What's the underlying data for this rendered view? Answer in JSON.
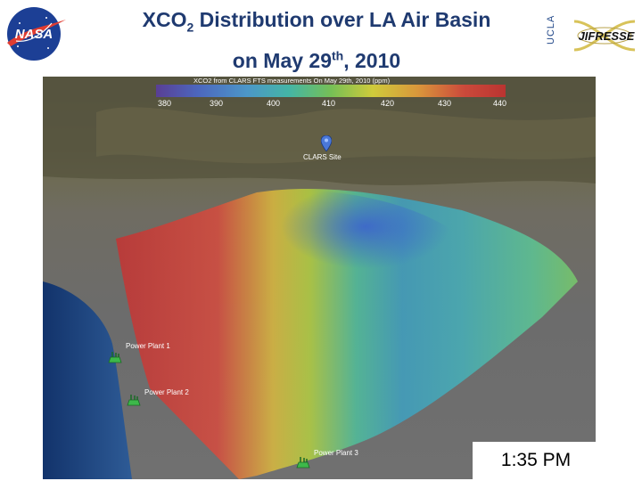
{
  "header": {
    "title_line1_part1": "XCO",
    "title_line1_sub": "2",
    "title_line1_part2": " Distribution over LA Air Basin",
    "title_line2_part1": "on May 29",
    "title_line2_sup": "th",
    "title_line2_part2": ", 2010",
    "nasa_logo_text": "NASA",
    "ucla_text": "UCLA",
    "jifresse_text": "JIFRESSE"
  },
  "map": {
    "colorbar": {
      "title": "XCO2 from CLARS FTS measurements On May 29th, 2010 (ppm)",
      "ticks": [
        "380",
        "390",
        "400",
        "410",
        "420",
        "430",
        "440"
      ]
    },
    "site": {
      "label": "CLARS Site"
    },
    "power_plants": [
      {
        "label": "Power Plant 1"
      },
      {
        "label": "Power Plant 2"
      },
      {
        "label": "Power Plant 3"
      }
    ],
    "time_label": "1:35 PM"
  },
  "colors": {
    "title": "#1f3a70",
    "xco2_low": "#3b5fd0",
    "xco2_mid": "#e4e03a",
    "xco2_high": "#cc2e2e"
  }
}
